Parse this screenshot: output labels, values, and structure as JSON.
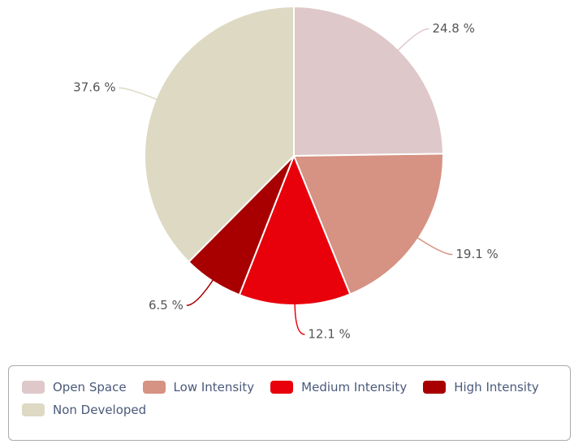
{
  "chart_data": {
    "type": "pie",
    "categories": [
      "Open Space",
      "Low Intensity",
      "Medium Intensity",
      "High Intensity",
      "Non Developed"
    ],
    "values": [
      24.8,
      19.1,
      12.1,
      6.5,
      37.6
    ],
    "value_labels": [
      "24.8 %",
      "19.1 %",
      "12.1 %",
      "6.5 %",
      "37.6 %"
    ],
    "colors": [
      "#dfc8ca",
      "#d69282",
      "#e8000b",
      "#a80000",
      "#ddd9c3"
    ],
    "legend": "bottom"
  }
}
